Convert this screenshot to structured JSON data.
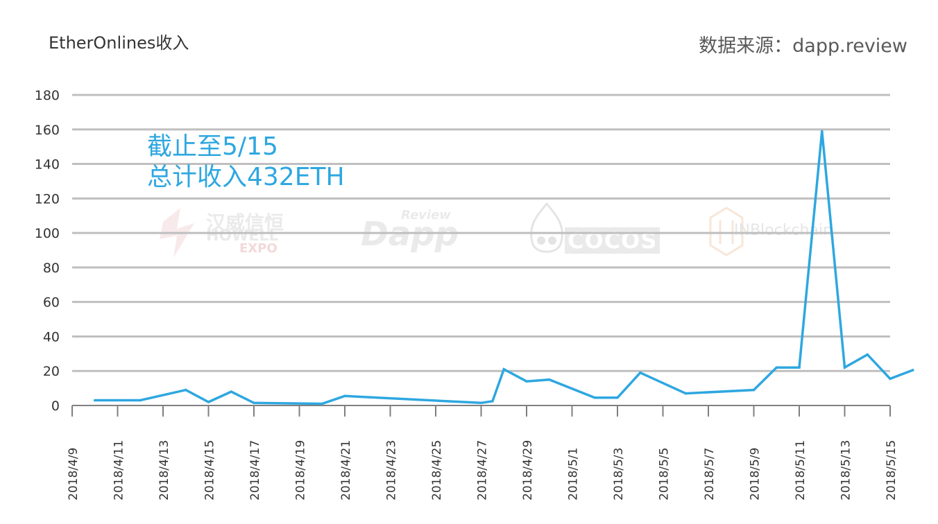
{
  "header": {
    "title": "EtherOnlines收入",
    "source": "数据来源：dapp.review"
  },
  "annotation": {
    "line1": "截止至5/15",
    "line2": "总计收入432ETH"
  },
  "watermarks": {
    "howell_cn": "汉威信恒",
    "howell_en1": "HOWELL",
    "howell_en2": "EXPO",
    "dapp_small": "Review",
    "dapp_big": "Dapp",
    "cocos": "COCOS",
    "inblockchain": "INBlockchain"
  },
  "colors": {
    "line": "#2ea7e0",
    "grid": "#bfbfbf",
    "axis": "#7f7f7f"
  },
  "chart_data": {
    "type": "line",
    "title": "EtherOnlines收入",
    "ylim": [
      0,
      180
    ],
    "yticks": [
      0,
      20,
      40,
      60,
      80,
      100,
      120,
      140,
      160,
      180
    ],
    "grid": true,
    "x_tick_labels": [
      "2018/4/9",
      "2018/4/11",
      "2018/4/13",
      "2018/4/15",
      "2018/4/17",
      "2018/4/19",
      "2018/4/21",
      "2018/4/23",
      "2018/4/25",
      "2018/4/27",
      "2018/4/29",
      "2018/5/1",
      "2018/5/3",
      "2018/5/5",
      "2018/5/7",
      "2018/5/9",
      "2018/5/11",
      "2018/5/13",
      "2018/5/15"
    ],
    "x_start": "2018/4/9",
    "x_end": "2018/5/15",
    "points": [
      {
        "x": "2018/4/10",
        "y": 3
      },
      {
        "x": "2018/4/12",
        "y": 3
      },
      {
        "x": "2018/4/14",
        "y": 9
      },
      {
        "x": "2018/4/15",
        "y": 2
      },
      {
        "x": "2018/4/16",
        "y": 8
      },
      {
        "x": "2018/4/17",
        "y": 1.5
      },
      {
        "x": "2018/4/20",
        "y": 1
      },
      {
        "x": "2018/4/21",
        "y": 5.5
      },
      {
        "x": "2018/4/27",
        "y": 1.5
      },
      {
        "x": "2018/4/27.5",
        "y": 2.5
      },
      {
        "x": "2018/4/28",
        "y": 21
      },
      {
        "x": "2018/4/29",
        "y": 14
      },
      {
        "x": "2018/4/30",
        "y": 15
      },
      {
        "x": "2018/5/2",
        "y": 4.5
      },
      {
        "x": "2018/5/3",
        "y": 4.5
      },
      {
        "x": "2018/5/4",
        "y": 19
      },
      {
        "x": "2018/5/6",
        "y": 7
      },
      {
        "x": "2018/5/9",
        "y": 9
      },
      {
        "x": "2018/5/10",
        "y": 22
      },
      {
        "x": "2018/5/11",
        "y": 22
      },
      {
        "x": "2018/5/12",
        "y": 159
      },
      {
        "x": "2018/5/13",
        "y": 22
      },
      {
        "x": "2018/5/14",
        "y": 29.5
      },
      {
        "x": "2018/5/15",
        "y": 15.5
      },
      {
        "x": "2018/5/16",
        "y": 20.5
      }
    ]
  }
}
